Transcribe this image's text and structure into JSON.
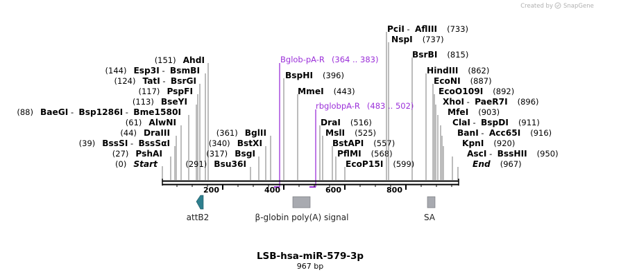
{
  "brand": {
    "created_by": "Created by",
    "app": "SnapGene"
  },
  "map": {
    "title": "LSB-hsa-miR-579-3p",
    "length_label": "967 bp",
    "length": 967
  },
  "ticks": [
    "200",
    "400",
    "600",
    "800"
  ],
  "sites": [
    {
      "parts": [
        "(0)",
        "Start"
      ],
      "italic": true
    },
    {
      "parts": [
        "(27)",
        "PshAI"
      ]
    },
    {
      "parts": [
        "(39)",
        "BssSI",
        " - ",
        "BssSαI"
      ]
    },
    {
      "parts": [
        "(44)",
        "DraIII"
      ]
    },
    {
      "parts": [
        "(61)",
        "AlwNI"
      ]
    },
    {
      "parts": [
        "(88)",
        "BaeGI",
        " - ",
        "Bsp1286I",
        " - ",
        "Bme1580I"
      ]
    },
    {
      "parts": [
        "(113)",
        "BseYI"
      ]
    },
    {
      "parts": [
        "(117)",
        "PspFI"
      ]
    },
    {
      "parts": [
        "(124)",
        "TatI",
        " - ",
        "BsrGI"
      ]
    },
    {
      "parts": [
        "(144)",
        "Esp3I",
        " - ",
        "BsmBI"
      ]
    },
    {
      "parts": [
        "(151)",
        "AhdI"
      ]
    },
    {
      "parts": [
        "(291)",
        "Bsu36I"
      ]
    },
    {
      "parts": [
        "(317)",
        "BsgI"
      ]
    },
    {
      "parts": [
        "(340)",
        "BstXI"
      ]
    },
    {
      "parts": [
        "(361)",
        "BglII"
      ]
    },
    {
      "parts": [
        "BspHI",
        "(396)"
      ]
    },
    {
      "parts": [
        "MmeI",
        "(443)"
      ]
    },
    {
      "parts": [
        "DraI",
        "(516)"
      ]
    },
    {
      "parts": [
        "MslI",
        "(525)"
      ]
    },
    {
      "parts": [
        "BstAPI",
        "(557)"
      ]
    },
    {
      "parts": [
        "PflMI",
        "(568)"
      ]
    },
    {
      "parts": [
        "EcoP15I",
        "(599)"
      ]
    },
    {
      "parts": [
        "PciI",
        " - ",
        "AflIII",
        "(733)"
      ]
    },
    {
      "parts": [
        "NspI",
        "(737)"
      ]
    },
    {
      "parts": [
        "BsrBI",
        "(815)"
      ]
    },
    {
      "parts": [
        "HindIII",
        "(862)"
      ]
    },
    {
      "parts": [
        "EcoNI",
        "(887)"
      ]
    },
    {
      "parts": [
        "EcoO109I",
        "(892)"
      ]
    },
    {
      "parts": [
        "XhoI",
        " - ",
        "PaeR7I",
        "(896)"
      ]
    },
    {
      "parts": [
        "MfeI",
        "(903)"
      ]
    },
    {
      "parts": [
        "ClaI",
        " - ",
        "BspDI",
        "(911)"
      ]
    },
    {
      "parts": [
        "BanI",
        " - ",
        "Acc65I",
        "(916)"
      ]
    },
    {
      "parts": [
        "KpnI",
        "(920)"
      ]
    },
    {
      "parts": [
        "AscI",
        " - ",
        "BssHII",
        "(950)"
      ]
    },
    {
      "parts": [
        "End",
        "(967)"
      ],
      "italic": true
    }
  ],
  "primers": [
    {
      "name": "Bglob-pA-R",
      "range": "(364 .. 383)"
    },
    {
      "name": "rbglobpA-R",
      "range": "(483 .. 502)"
    }
  ],
  "features": [
    {
      "name": "attB2",
      "color": "#2e7f8e"
    },
    {
      "name": "β-globin poly(A) signal",
      "color": "#a8aab0"
    },
    {
      "name": "SA",
      "color": "#a8aab0"
    }
  ]
}
